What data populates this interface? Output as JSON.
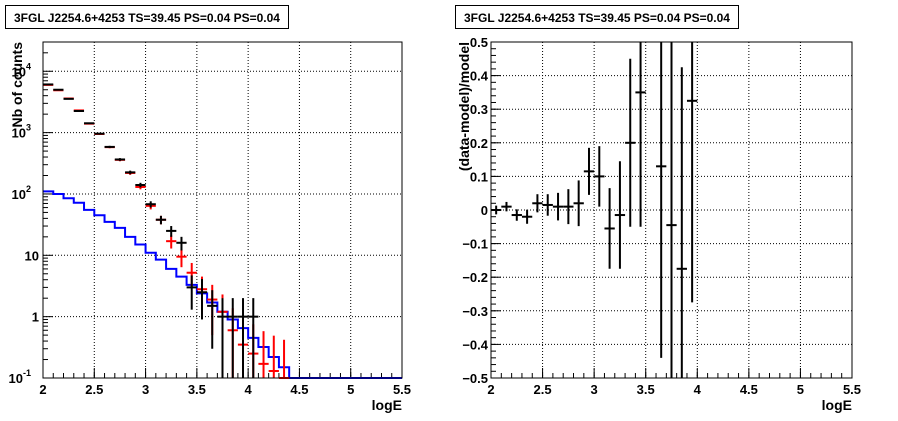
{
  "chart_data": [
    {
      "type": "line",
      "title": "3FGL J2254.6+4253 TS=39.45 PS=0.04 PS=0.04",
      "xlabel": "logE",
      "ylabel": "Nb of counts",
      "xlim": [
        2,
        5.5
      ],
      "ylim": [
        0.1,
        30000
      ],
      "y_scale": "log",
      "grid": true,
      "x_ticks": [
        "2",
        "2.5",
        "3",
        "3.5",
        "4",
        "4.5",
        "5",
        "5.5"
      ],
      "y_ticks": [
        {
          "value": 0.1,
          "label": "10",
          "exp": "-1"
        },
        {
          "value": 1,
          "label": "1",
          "exp": ""
        },
        {
          "value": 10,
          "label": "10",
          "exp": ""
        },
        {
          "value": 100,
          "label": "10",
          "exp": "2"
        },
        {
          "value": 1000,
          "label": "10",
          "exp": "3"
        },
        {
          "value": 10000,
          "label": "10",
          "exp": "4"
        }
      ],
      "series": [
        {
          "color": "#0000ff",
          "style": "step",
          "x": [
            2.0,
            2.1,
            2.2,
            2.3,
            2.4,
            2.5,
            2.6,
            2.7,
            2.8,
            2.9,
            3.0,
            3.1,
            3.2,
            3.3,
            3.4,
            3.5,
            3.6,
            3.7,
            3.8,
            3.9,
            4.0,
            4.1,
            4.2,
            4.3,
            4.4,
            4.5,
            4.6,
            4.7,
            4.8,
            4.9,
            5.0,
            5.1,
            5.2,
            5.3,
            5.4
          ],
          "values": [
            110,
            100,
            85,
            72,
            55,
            45,
            35,
            28,
            20,
            15,
            11,
            8.5,
            6,
            4.5,
            3.3,
            2.4,
            1.7,
            1.2,
            0.9,
            0.65,
            0.45,
            0.32,
            0.22,
            0.15,
            0.1,
            0.1,
            0.1,
            0.1,
            0.1,
            0.1,
            0.1,
            0.1,
            0.1,
            0.1,
            0.1
          ]
        },
        {
          "color": "#ff0000",
          "style": "errorbar",
          "x": [
            2.05,
            2.15,
            2.25,
            2.35,
            2.45,
            2.55,
            2.65,
            2.75,
            2.85,
            2.95,
            3.05,
            3.15,
            3.25,
            3.35,
            3.45,
            3.55,
            3.65,
            3.75,
            3.85,
            3.95,
            4.05,
            4.15,
            4.25,
            4.35
          ],
          "values": [
            6000,
            4900,
            3600,
            2300,
            1400,
            950,
            580,
            360,
            220,
            130,
            64,
            38,
            17,
            9.5,
            5.2,
            2.8,
            1.9,
            1.2,
            0.6,
            0.35,
            0.25,
            0.17,
            0.13,
            0.1
          ],
          "errors": [
            80,
            70,
            60,
            48,
            37,
            31,
            24,
            19,
            15,
            11,
            8,
            6,
            4.1,
            3.1,
            2.3,
            1.7,
            1.4,
            1.1,
            0.77,
            0.59,
            0.5,
            0.41,
            0.36,
            0.32
          ]
        },
        {
          "color": "#000000",
          "style": "errorbar",
          "x": [
            2.05,
            2.15,
            2.25,
            2.35,
            2.45,
            2.55,
            2.65,
            2.75,
            2.85,
            2.95,
            3.05,
            3.15,
            3.25,
            3.35,
            3.45,
            3.55,
            3.65,
            3.75,
            3.85,
            3.95,
            4.05
          ],
          "values": [
            6100,
            5000,
            3550,
            2250,
            1420,
            960,
            585,
            365,
            225,
            140,
            68,
            38,
            25,
            16,
            3,
            2.5,
            1.5,
            1,
            1,
            1,
            1
          ],
          "errors": [
            78,
            71,
            60,
            47,
            38,
            31,
            24,
            19,
            15,
            12,
            8,
            6,
            5,
            4,
            1.7,
            1.6,
            1.2,
            1,
            1,
            1,
            1
          ]
        }
      ]
    },
    {
      "type": "scatter",
      "title": "3FGL J2254.6+4253 TS=39.45 PS=0.04 PS=0.04",
      "xlabel": "logE",
      "ylabel": "(data-model)/model",
      "xlim": [
        2,
        5.5
      ],
      "ylim": [
        -0.5,
        0.5
      ],
      "grid": true,
      "x_ticks": [
        "2",
        "2.5",
        "3",
        "3.5",
        "4",
        "4.5",
        "5",
        "5.5"
      ],
      "y_ticks": [
        "−0.5",
        "−0.4",
        "−0.3",
        "−0.2",
        "−0.1",
        "0",
        "0.1",
        "0.2",
        "0.3",
        "0.4",
        "0.5"
      ],
      "series": [
        {
          "color": "#000000",
          "x": [
            2.05,
            2.15,
            2.25,
            2.35,
            2.45,
            2.55,
            2.65,
            2.75,
            2.85,
            2.95,
            3.05,
            3.15,
            3.25,
            3.35,
            3.45,
            3.65,
            3.75,
            3.85,
            3.95
          ],
          "values": [
            0.0,
            0.01,
            -0.015,
            -0.02,
            0.02,
            0.015,
            0.01,
            0.01,
            0.02,
            0.115,
            0.1,
            -0.055,
            -0.015,
            0.2,
            0.35,
            0.13,
            -0.045,
            -0.175,
            0.325
          ],
          "errors": [
            0.013,
            0.014,
            0.017,
            0.021,
            0.027,
            0.032,
            0.041,
            0.052,
            0.068,
            0.07,
            0.09,
            0.12,
            0.16,
            0.25,
            0.4,
            0.57,
            0.6,
            0.6,
            0.6
          ]
        }
      ]
    }
  ]
}
